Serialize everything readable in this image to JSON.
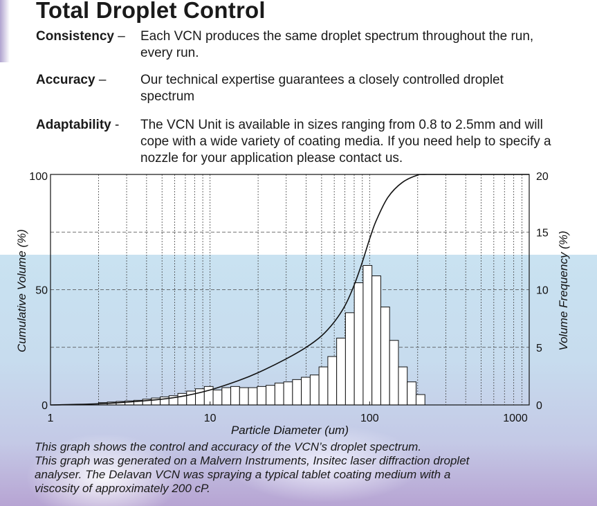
{
  "title": "Total Droplet Control",
  "features": [
    {
      "term": "Consistency",
      "sep": " – ",
      "desc": "Each VCN produces the same droplet spectrum throughout the run, every run."
    },
    {
      "term": "Accuracy",
      "sep": " –",
      "desc": "Our technical expertise guarantees a closely controlled droplet spectrum"
    },
    {
      "term": "Adaptability",
      "sep": " -",
      "desc": "The VCN Unit is available in sizes ranging from 0.8 to 2.5mm and will cope with a wide variety of coating media. If you need help to specify a nozzle for your application please contact us."
    }
  ],
  "caption": [
    "This graph shows the control and accuracy of the VCN’s droplet spectrum.",
    "This graph was generated on a Malvern Instruments, Insitec laser diffraction droplet",
    "analyser. The Delavan VCN was spraying a typical tablet coating medium with a",
    "viscosity of approximately 200 cP."
  ],
  "colors": {
    "line": "#111111",
    "bars": "#ffffff",
    "grid": "#444444"
  },
  "chart_data": {
    "type": "bar",
    "title": "",
    "xlabel": "Particle Diameter (um)",
    "ylabel_left": "Cumulative Volume (%)",
    "ylabel_right": "Volume Frequency (%)",
    "x_scale": "log",
    "xlim": [
      1,
      1000
    ],
    "x_ticks": [
      "1",
      "10",
      "100",
      "1000"
    ],
    "y_left_lim": [
      0,
      100
    ],
    "y_left_ticks": [
      "0",
      "50",
      "100"
    ],
    "y_right_lim": [
      0,
      20
    ],
    "y_right_ticks": [
      "0",
      "5",
      "10",
      "15",
      "20"
    ],
    "grid": "dashed",
    "series": [
      {
        "axis": "right",
        "type": "histogram",
        "bins": [
          {
            "x0": 2.0,
            "x1": 2.27,
            "value": 0.2
          },
          {
            "x0": 2.27,
            "x1": 2.58,
            "value": 0.25
          },
          {
            "x0": 2.58,
            "x1": 2.93,
            "value": 0.3
          },
          {
            "x0": 2.93,
            "x1": 3.33,
            "value": 0.35
          },
          {
            "x0": 3.33,
            "x1": 3.78,
            "value": 0.4
          },
          {
            "x0": 3.78,
            "x1": 4.29,
            "value": 0.5
          },
          {
            "x0": 4.29,
            "x1": 4.87,
            "value": 0.6
          },
          {
            "x0": 4.87,
            "x1": 5.53,
            "value": 0.7
          },
          {
            "x0": 5.53,
            "x1": 6.28,
            "value": 0.8
          },
          {
            "x0": 6.28,
            "x1": 7.13,
            "value": 1.0
          },
          {
            "x0": 7.13,
            "x1": 8.1,
            "value": 1.2
          },
          {
            "x0": 8.1,
            "x1": 9.2,
            "value": 1.4
          },
          {
            "x0": 9.2,
            "x1": 10.45,
            "value": 1.6
          },
          {
            "x0": 10.45,
            "x1": 11.87,
            "value": 1.3
          },
          {
            "x0": 11.87,
            "x1": 13.48,
            "value": 1.5
          },
          {
            "x0": 13.48,
            "x1": 15.31,
            "value": 1.6
          },
          {
            "x0": 15.31,
            "x1": 17.39,
            "value": 1.5
          },
          {
            "x0": 17.39,
            "x1": 19.75,
            "value": 1.5
          },
          {
            "x0": 19.75,
            "x1": 22.43,
            "value": 1.6
          },
          {
            "x0": 22.43,
            "x1": 25.48,
            "value": 1.7
          },
          {
            "x0": 25.48,
            "x1": 28.94,
            "value": 1.9
          },
          {
            "x0": 28.94,
            "x1": 32.87,
            "value": 2.0
          },
          {
            "x0": 32.87,
            "x1": 37.33,
            "value": 2.2
          },
          {
            "x0": 37.33,
            "x1": 42.4,
            "value": 2.4
          },
          {
            "x0": 42.4,
            "x1": 48.16,
            "value": 2.6
          },
          {
            "x0": 48.16,
            "x1": 54.7,
            "value": 3.3
          },
          {
            "x0": 54.7,
            "x1": 62.13,
            "value": 4.2
          },
          {
            "x0": 62.13,
            "x1": 70.56,
            "value": 5.8
          },
          {
            "x0": 70.56,
            "x1": 80.14,
            "value": 8.0
          },
          {
            "x0": 80.14,
            "x1": 91.03,
            "value": 10.6
          },
          {
            "x0": 91.03,
            "x1": 103.39,
            "value": 12.1
          },
          {
            "x0": 103.39,
            "x1": 117.43,
            "value": 11.2
          },
          {
            "x0": 117.43,
            "x1": 133.38,
            "value": 8.5
          },
          {
            "x0": 133.38,
            "x1": 151.5,
            "value": 5.6
          },
          {
            "x0": 151.5,
            "x1": 172.07,
            "value": 3.3
          },
          {
            "x0": 172.07,
            "x1": 195.44,
            "value": 2.0
          },
          {
            "x0": 195.44,
            "x1": 221.98,
            "value": 0.9
          }
        ]
      },
      {
        "axis": "left",
        "type": "line",
        "x": [
          1.0,
          2.0,
          3.0,
          5.0,
          7.0,
          10.0,
          15.0,
          20.0,
          30.0,
          40.0,
          50.0,
          60.0,
          70.0,
          80.0,
          90.0,
          100.0,
          110.0,
          130.0,
          160.0,
          200.0,
          230.0,
          1000.0
        ],
        "values": [
          0.0,
          0.5,
          1.2,
          2.5,
          4.0,
          6.5,
          10.5,
          14.0,
          20.0,
          25.0,
          30.0,
          36.0,
          43.0,
          52.0,
          62.0,
          72.0,
          80.0,
          90.0,
          96.5,
          99.7,
          100.0,
          100.0
        ]
      }
    ]
  }
}
